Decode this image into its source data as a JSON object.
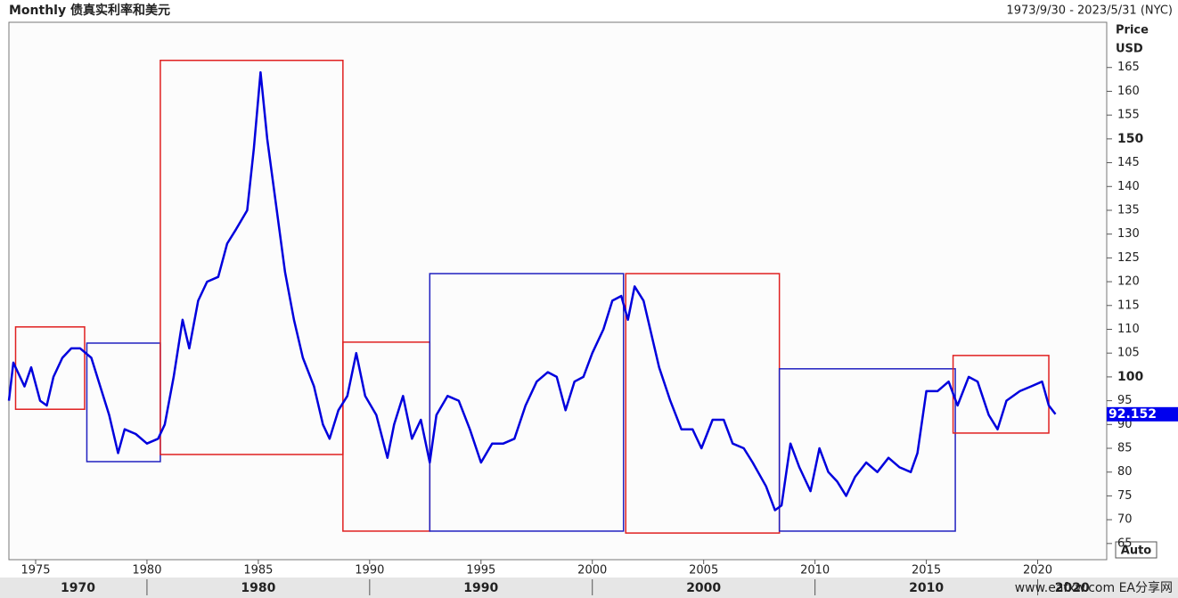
{
  "chart_data": {
    "type": "line",
    "title": "Monthly 债真实利率和美元",
    "date_range": "1973/9/30 - 2023/5/31 (NYC)",
    "y_axis_label": [
      "Price",
      "USD"
    ],
    "scale_button": "Auto",
    "watermark": "www.eafxw.com EA分享网",
    "xlim": [
      1973.8,
      2023.1
    ],
    "xticks": [
      1975,
      1980,
      1985,
      1990,
      1995,
      2000,
      2005,
      2010,
      2015,
      2020
    ],
    "decades": [
      1970,
      1980,
      1990,
      2000,
      2010,
      2020
    ],
    "ylim": [
      61.6,
      174.5
    ],
    "yticks": [
      65,
      70,
      75,
      80,
      85,
      90,
      95,
      100,
      105,
      110,
      115,
      120,
      125,
      130,
      135,
      140,
      145,
      150,
      155,
      160,
      165
    ],
    "series": [
      {
        "name": "USD",
        "color": "#0000dd",
        "x": [
          1973.8,
          1974.0,
          1974.5,
          1974.8,
          1975.2,
          1975.5,
          1975.8,
          1976.2,
          1976.6,
          1977.0,
          1977.5,
          1977.9,
          1978.3,
          1978.7,
          1979.0,
          1979.5,
          1980.0,
          1980.5,
          1980.8,
          1981.2,
          1981.6,
          1981.9,
          1982.3,
          1982.7,
          1983.2,
          1983.6,
          1984.0,
          1984.5,
          1984.8,
          1985.1,
          1985.4,
          1985.8,
          1986.2,
          1986.6,
          1987.0,
          1987.5,
          1987.9,
          1988.2,
          1988.6,
          1989.0,
          1989.4,
          1989.8,
          1990.3,
          1990.8,
          1991.1,
          1991.5,
          1991.9,
          1992.3,
          1992.7,
          1993.0,
          1993.5,
          1994.0,
          1994.5,
          1995.0,
          1995.5,
          1996.0,
          1996.5,
          1997.0,
          1997.5,
          1998.0,
          1998.4,
          1998.8,
          1999.2,
          1999.6,
          2000.0,
          2000.5,
          2000.9,
          2001.3,
          2001.6,
          2001.9,
          2002.3,
          2002.7,
          2003.0,
          2003.5,
          2004.0,
          2004.5,
          2004.9,
          2005.4,
          2005.9,
          2006.3,
          2006.8,
          2007.2,
          2007.8,
          2008.2,
          2008.5,
          2008.9,
          2009.3,
          2009.8,
          2010.2,
          2010.6,
          2011.0,
          2011.4,
          2011.8,
          2012.3,
          2012.8,
          2013.3,
          2013.8,
          2014.3,
          2014.6,
          2015.0,
          2015.5,
          2016.0,
          2016.4,
          2016.9,
          2017.3,
          2017.8,
          2018.2,
          2018.6,
          2019.2,
          2019.7,
          2020.2,
          2020.5,
          2020.8
        ],
        "values": [
          95,
          103,
          98,
          102,
          95,
          94,
          100,
          104,
          106,
          106,
          104,
          98,
          92,
          84,
          89,
          88,
          86,
          87,
          90,
          100,
          112,
          106,
          116,
          120,
          121,
          128,
          131,
          135,
          148,
          164,
          150,
          136,
          122,
          112,
          104,
          98,
          90,
          87,
          93,
          96,
          105,
          96,
          92,
          83,
          90,
          96,
          87,
          91,
          82,
          92,
          96,
          95,
          89,
          82,
          86,
          86,
          87,
          94,
          99,
          101,
          100,
          93,
          99,
          100,
          105,
          110,
          116,
          117,
          112,
          119,
          116,
          108,
          102,
          95,
          89,
          89,
          85,
          91,
          91,
          86,
          85,
          82,
          77,
          72,
          73,
          86,
          81,
          76,
          85,
          80,
          78,
          75,
          79,
          82,
          80,
          83,
          81,
          80,
          84,
          97,
          97,
          99,
          94,
          100,
          99,
          92,
          89,
          95,
          97,
          98,
          99,
          94,
          92.152
        ]
      }
    ],
    "last_value": 92.152,
    "boxes": [
      {
        "color": "red",
        "x": [
          1974.1,
          1977.2
        ],
        "y": [
          93.2,
          110.5
        ]
      },
      {
        "color": "blue",
        "x": [
          1977.3,
          1980.6
        ],
        "y": [
          82.2,
          107.1
        ]
      },
      {
        "color": "red",
        "x": [
          1980.6,
          1988.8
        ],
        "y": [
          83.7,
          166.5
        ]
      },
      {
        "color": "red",
        "x": [
          1988.8,
          1992.7
        ],
        "y": [
          67.6,
          107.3
        ]
      },
      {
        "color": "blue",
        "x": [
          1992.7,
          2001.4
        ],
        "y": [
          67.6,
          121.7
        ]
      },
      {
        "color": "red",
        "x": [
          2001.5,
          2008.4
        ],
        "y": [
          67.2,
          121.7
        ]
      },
      {
        "color": "blue",
        "x": [
          2008.4,
          2016.3
        ],
        "y": [
          67.6,
          101.7
        ]
      },
      {
        "color": "red",
        "x": [
          2016.2,
          2020.5
        ],
        "y": [
          88.2,
          104.5
        ]
      }
    ]
  }
}
